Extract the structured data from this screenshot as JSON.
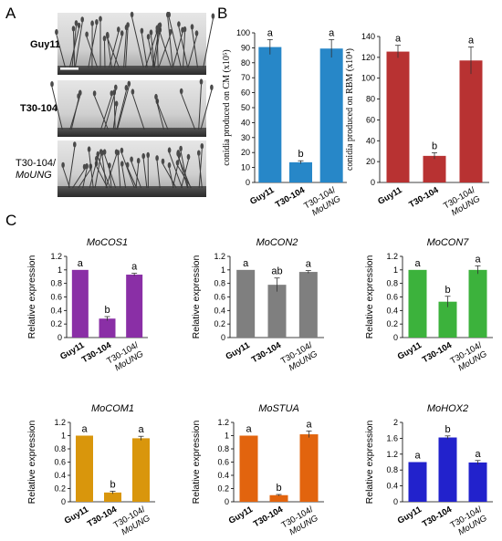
{
  "panels": {
    "A": "A",
    "B": "B",
    "C": "C"
  },
  "micrographs": [
    {
      "label": "Guy11",
      "gene_suffix": ""
    },
    {
      "label": "T30-104",
      "gene_suffix": ""
    },
    {
      "label": "T30-104/",
      "gene_suffix": "MoUNG"
    }
  ],
  "colors": {
    "blue": "#2787c8",
    "red": "#b83232",
    "purple": "#8a2fa6",
    "gray": "#7f7f7f",
    "green": "#3cb23c",
    "gold": "#d9960c",
    "orange": "#e2640e",
    "indigo": "#2222cc"
  },
  "chart_data": [
    {
      "id": "conidia-cm",
      "type": "bar",
      "panel": "B",
      "color_key": "blue",
      "categories": [
        "Guy11",
        "T30-104",
        "T30-104/ MoUNG"
      ],
      "category_lines": [
        [
          "Guy11",
          ""
        ],
        [
          "T30-104",
          ""
        ],
        [
          "T30-104/",
          "MoUNG"
        ]
      ],
      "values": [
        90.5,
        13.5,
        89.5
      ],
      "errors": [
        5,
        1,
        6
      ],
      "letters": [
        "a",
        "b",
        "a"
      ],
      "title": "",
      "ylabel": "conidia produced on CM (x10⁵)",
      "ylim": [
        0,
        100
      ],
      "yticks": [
        "0",
        "10",
        "20",
        "30",
        "40",
        "50",
        "60",
        "70",
        "80",
        "90",
        "100"
      ]
    },
    {
      "id": "conidia-rbm",
      "type": "bar",
      "panel": "B",
      "color_key": "red",
      "categories": [
        "Guy11",
        "T30-104",
        "T30-104/ MoUNG"
      ],
      "category_lines": [
        [
          "Guy11",
          ""
        ],
        [
          "T30-104",
          ""
        ],
        [
          "T30-104/",
          "MoUNG"
        ]
      ],
      "values": [
        125.5,
        25.5,
        117
      ],
      "errors": [
        6,
        3,
        13
      ],
      "letters": [
        "a",
        "b",
        "a"
      ],
      "title": "",
      "ylabel": "conidia produced on RBM (x10⁴)",
      "ylim": [
        0,
        140
      ],
      "yticks": [
        "0",
        "20",
        "40",
        "60",
        "80",
        "100",
        "120",
        "140"
      ]
    },
    {
      "id": "mocos1",
      "type": "bar",
      "panel": "C",
      "color_key": "purple",
      "categories": [
        "Guy11",
        "T30-104",
        "T30-104/ MoUNG"
      ],
      "category_lines": [
        [
          "Guy11",
          ""
        ],
        [
          "T30-104",
          ""
        ],
        [
          "T30-104/",
          "MoUNG"
        ]
      ],
      "values": [
        1.0,
        0.28,
        0.93
      ],
      "errors": [
        0.0,
        0.03,
        0.02
      ],
      "letters": [
        "a",
        "b",
        "a"
      ],
      "title": "MoCOS1",
      "ylabel": "Relative expression",
      "ylim": [
        0,
        1.2
      ],
      "yticks": [
        "0",
        "0.2",
        "0.4",
        "0.6",
        "0.8",
        "1",
        "1.2"
      ]
    },
    {
      "id": "mocon2",
      "type": "bar",
      "panel": "C",
      "color_key": "gray",
      "categories": [
        "Guy11",
        "T30-104",
        "T30-104/ MoUNG"
      ],
      "category_lines": [
        [
          "Guy11",
          ""
        ],
        [
          "T30-104",
          ""
        ],
        [
          "T30-104/",
          "MoUNG"
        ]
      ],
      "values": [
        1.0,
        0.78,
        0.97
      ],
      "errors": [
        0.0,
        0.1,
        0.02
      ],
      "letters": [
        "a",
        "ab",
        "a"
      ],
      "title": "MoCON2",
      "ylabel": "Relative expression",
      "ylim": [
        0,
        1.2
      ],
      "yticks": [
        "0",
        "0.2",
        "0.4",
        "0.6",
        "0.8",
        "1",
        "1.2"
      ]
    },
    {
      "id": "mocon7",
      "type": "bar",
      "panel": "C",
      "color_key": "green",
      "categories": [
        "Guy11",
        "T30-104",
        "T30-104/ MoUNG"
      ],
      "category_lines": [
        [
          "Guy11",
          ""
        ],
        [
          "T30-104",
          ""
        ],
        [
          "T30-104/",
          "MoUNG"
        ]
      ],
      "values": [
        1.0,
        0.53,
        1.0
      ],
      "errors": [
        0.0,
        0.08,
        0.06
      ],
      "letters": [
        "a",
        "b",
        "a"
      ],
      "title": "MoCON7",
      "ylabel": "Relative expression",
      "ylim": [
        0,
        1.2
      ],
      "yticks": [
        "0",
        "0.2",
        "0.4",
        "0.6",
        "0.8",
        "1",
        "1.2"
      ]
    },
    {
      "id": "mocom1",
      "type": "bar",
      "panel": "C",
      "color_key": "gold",
      "categories": [
        "Guy11",
        "T30-104",
        "T30-104/ MoUNG"
      ],
      "category_lines": [
        [
          "Guy11",
          ""
        ],
        [
          "T30-104",
          ""
        ],
        [
          "T30-104/",
          "MoUNG"
        ]
      ],
      "values": [
        1.0,
        0.14,
        0.96
      ],
      "errors": [
        0.0,
        0.02,
        0.03
      ],
      "letters": [
        "a",
        "b",
        "a"
      ],
      "title": "MoCOM1",
      "ylabel": "Relative expression",
      "ylim": [
        0,
        1.2
      ],
      "yticks": [
        "0",
        "0.2",
        "0.4",
        "0.6",
        "0.8",
        "1",
        "1.2"
      ]
    },
    {
      "id": "mostua",
      "type": "bar",
      "panel": "C",
      "color_key": "orange",
      "categories": [
        "Guy11",
        "T30-104",
        "T30-104/ MoUNG"
      ],
      "category_lines": [
        [
          "Guy11",
          ""
        ],
        [
          "T30-104",
          ""
        ],
        [
          "T30-104/",
          "MoUNG"
        ]
      ],
      "values": [
        1.0,
        0.1,
        1.02
      ],
      "errors": [
        0.0,
        0.01,
        0.05
      ],
      "letters": [
        "a",
        "b",
        "a"
      ],
      "title": "MoSTUA",
      "ylabel": "Relative expression",
      "ylim": [
        0,
        1.2
      ],
      "yticks": [
        "0",
        "0.2",
        "0.4",
        "0.6",
        "0.8",
        "1",
        "1.2"
      ]
    },
    {
      "id": "mohox2",
      "type": "bar",
      "panel": "C",
      "color_key": "indigo",
      "categories": [
        "Guy11",
        "T30-104",
        "T30-104/ MoUNG"
      ],
      "category_lines": [
        [
          "Guy11",
          ""
        ],
        [
          "T30-104",
          ""
        ],
        [
          "T30-104/",
          "MoUNG"
        ]
      ],
      "values": [
        1.0,
        1.62,
        0.99
      ],
      "errors": [
        0.0,
        0.04,
        0.05
      ],
      "letters": [
        "a",
        "b",
        "a"
      ],
      "title": "MoHOX2",
      "ylabel": "Relative expression",
      "ylim": [
        0,
        2
      ],
      "yticks": [
        "0",
        "0.4",
        "0.8",
        "1.2",
        "1.6",
        "2"
      ]
    }
  ]
}
